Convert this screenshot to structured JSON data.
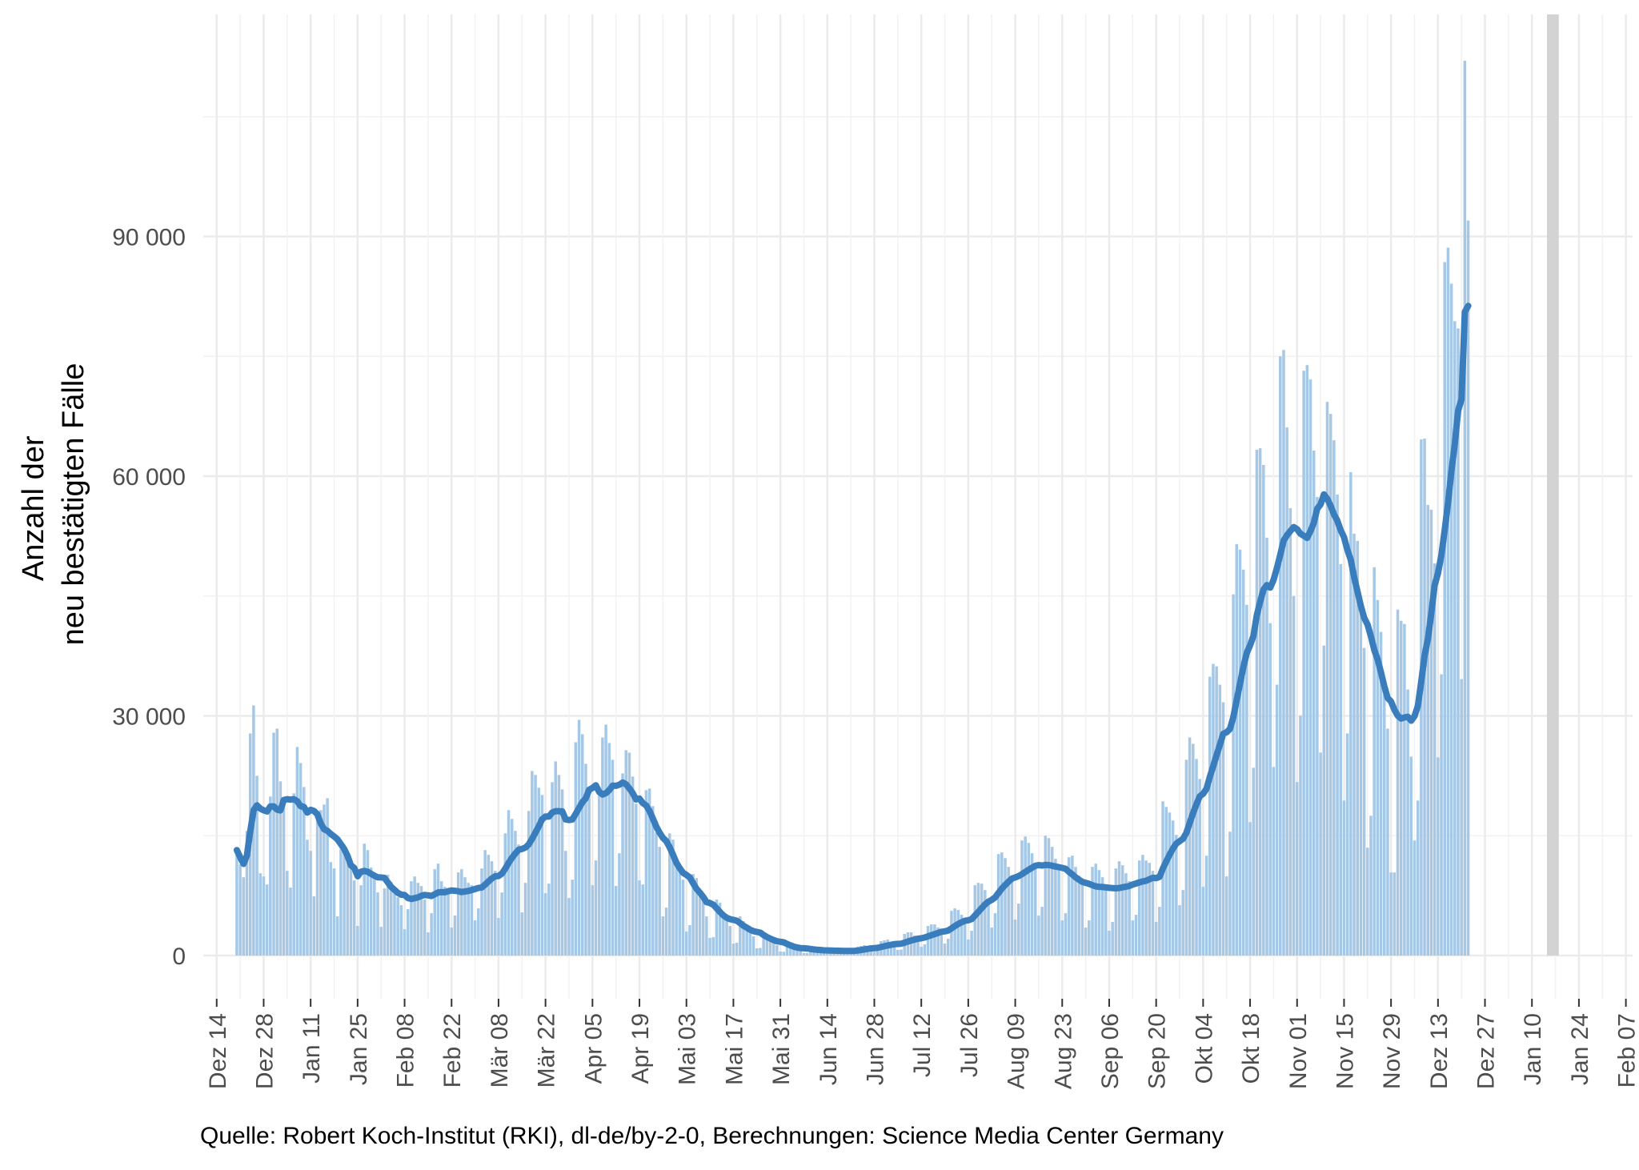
{
  "chart_data": {
    "type": "bar",
    "title": "",
    "xlabel": "",
    "ylabel": [
      "Anzahl der",
      "neu bestätigten Fälle"
    ],
    "caption": "Quelle: Robert Koch-Institut (RKI), dl-de/by-2-0, Berechnungen: Science Media Center Germany",
    "ylim": [
      0,
      120000
    ],
    "yticks": [
      0,
      30000,
      60000,
      90000
    ],
    "ytick_labels": [
      "0",
      "30 000",
      "60 000",
      "90 000"
    ],
    "xlim": [
      "2020-12-10",
      "2022-02-09"
    ],
    "xticks": [
      "2020-12-14",
      "2020-12-28",
      "2021-01-11",
      "2021-01-25",
      "2021-02-08",
      "2021-02-22",
      "2021-03-08",
      "2021-03-22",
      "2021-04-05",
      "2021-04-19",
      "2021-05-03",
      "2021-05-17",
      "2021-05-31",
      "2021-06-14",
      "2021-06-28",
      "2021-07-12",
      "2021-07-26",
      "2021-08-09",
      "2021-08-23",
      "2021-09-06",
      "2021-09-20",
      "2021-10-04",
      "2021-10-18",
      "2021-11-01",
      "2021-11-15",
      "2021-11-29",
      "2021-12-13",
      "2021-12-27",
      "2022-01-10",
      "2022-01-24",
      "2022-02-07"
    ],
    "xtick_labels": [
      "Dez 14",
      "Dez 28",
      "Jan 11",
      "Jan 25",
      "Feb 08",
      "Feb 22",
      "Mär 08",
      "Mär 22",
      "Apr 05",
      "Apr 19",
      "Mai 03",
      "Mai 17",
      "Mai 31",
      "Jun 14",
      "Jun 28",
      "Jul 12",
      "Jul 26",
      "Aug 09",
      "Aug 23",
      "Sep 06",
      "Sep 20",
      "Okt 04",
      "Okt 18",
      "Nov 01",
      "Nov 15",
      "Nov 29",
      "Dez 13",
      "Dez 27",
      "Jan 10",
      "Jan 24",
      "Feb 07"
    ],
    "highlight_range": [
      "2022-01-14",
      "2022-01-18"
    ],
    "bar_start_date": "2020-12-20",
    "daily_cases": [
      13200,
      11400,
      9800,
      15600,
      27800,
      31300,
      22500,
      10300,
      9900,
      8900,
      19900,
      27900,
      28400,
      21800,
      19500,
      10600,
      8500,
      20300,
      26100,
      24100,
      21100,
      14500,
      13100,
      7400,
      17500,
      18200,
      18900,
      19700,
      11700,
      10900,
      4900,
      13300,
      13900,
      12800,
      11500,
      9400,
      3700,
      8800,
      14000,
      13200,
      11000,
      9900,
      7900,
      3600,
      8400,
      10100,
      9200,
      8400,
      7300,
      6300,
      3300,
      5800,
      9300,
      9900,
      9100,
      8700,
      7000,
      2900,
      5300,
      10800,
      11500,
      9300,
      8600,
      8000,
      3500,
      5000,
      10400,
      10800,
      9800,
      9100,
      8800,
      4400,
      5900,
      10900,
      13200,
      12600,
      11800,
      10600,
      4700,
      7900,
      15300,
      18200,
      17100,
      15600,
      13900,
      5400,
      9100,
      18100,
      23100,
      22600,
      21000,
      20100,
      7800,
      9000,
      21700,
      24300,
      22600,
      20800,
      13100,
      7200,
      9500,
      26700,
      29500,
      27700,
      24000,
      20600,
      8800,
      11900,
      20800,
      27300,
      28900,
      26600,
      24500,
      8700,
      12800,
      22800,
      25700,
      25400,
      22400,
      19000,
      9400,
      8900,
      20700,
      20900,
      18700,
      15400,
      13600,
      4900,
      6000,
      15300,
      14500,
      11700,
      10600,
      9500,
      3000,
      3800,
      10200,
      9700,
      8300,
      6900,
      4900,
      2200,
      2300,
      7000,
      6600,
      5300,
      4800,
      3700,
      1500,
      1600,
      4900,
      4300,
      3600,
      3000,
      2400,
      900,
      950,
      2800,
      2600,
      2200,
      1700,
      1300,
      500,
      470,
      1400,
      1300,
      1100,
      950,
      800,
      330,
      320,
      950,
      900,
      810,
      700,
      580,
      250,
      260,
      800,
      780,
      740,
      640,
      560,
      260,
      290,
      1100,
      1200,
      1300,
      1100,
      1000,
      480,
      550,
      1800,
      1900,
      2000,
      1700,
      1500,
      700,
      750,
      2700,
      2900,
      2900,
      2500,
      2300,
      1100,
      1400,
      3700,
      3900,
      3900,
      3500,
      3300,
      1500,
      2100,
      5600,
      5900,
      5700,
      5100,
      4500,
      2000,
      3100,
      8800,
      9100,
      9000,
      8200,
      7000,
      3500,
      5300,
      12700,
      12900,
      12200,
      11100,
      9700,
      4500,
      6500,
      14400,
      14900,
      14100,
      12800,
      11500,
      5000,
      6100,
      15000,
      14700,
      13600,
      12100,
      10900,
      4400,
      5300,
      12300,
      12500,
      11100,
      10000,
      9000,
      3500,
      4400,
      11100,
      11500,
      10700,
      9800,
      8700,
      3100,
      4200,
      10900,
      11800,
      11300,
      10300,
      9300,
      4400,
      5100,
      11900,
      12600,
      11900,
      11600,
      10600,
      4200,
      6100,
      19300,
      18600,
      17900,
      16900,
      15100,
      6300,
      8200,
      24500,
      27300,
      26500,
      24600,
      22100,
      8600,
      12500,
      34900,
      36500,
      36200,
      33900,
      31700,
      9900,
      15500,
      45200,
      51500,
      50800,
      48300,
      43900,
      16700,
      23500,
      63300,
      63500,
      61400,
      52300,
      41600,
      23600,
      33900,
      75000,
      75800,
      66100,
      56000,
      45000,
      21700,
      30000,
      73200,
      73900,
      72100,
      63200,
      57400,
      25400,
      38800,
      69300,
      67800,
      64500,
      57700,
      49000,
      19400,
      27800,
      60500,
      52800,
      51900,
      45000,
      38500,
      13500,
      17500,
      48600,
      44500,
      40500,
      32700,
      28400,
      10400,
      10400,
      43300,
      41900,
      41500,
      33300,
      24900,
      14400,
      19400,
      64600,
      64700,
      56400,
      55800,
      49100,
      24800,
      35200,
      86800,
      88600,
      84100,
      79400,
      78500,
      34600,
      112000,
      92000
    ]
  }
}
